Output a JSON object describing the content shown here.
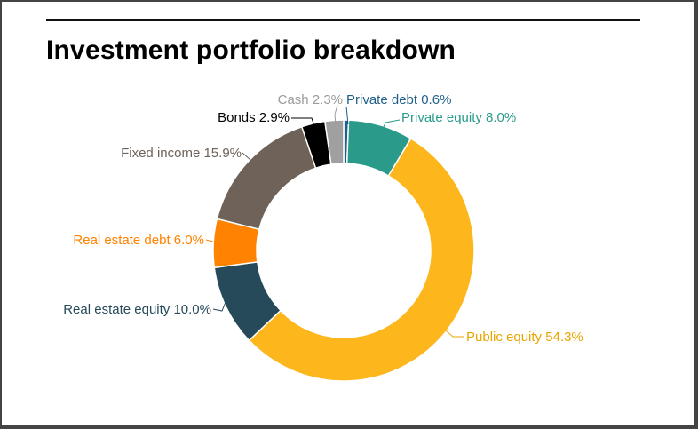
{
  "header": {
    "title": "Investment portfolio breakdown"
  },
  "chart_data": {
    "type": "pie",
    "variant": "donut",
    "title": "Investment portfolio breakdown",
    "legend": "none",
    "slices": [
      {
        "label": "Private debt",
        "value": 0.6,
        "text": "Private debt 0.6%",
        "color": "#1f5f8b"
      },
      {
        "label": "Private equity",
        "value": 8.0,
        "text": "Private equity 8.0%",
        "color": "#2a9a8a"
      },
      {
        "label": "Public equity",
        "value": 54.3,
        "text": "Public equity 54.3%",
        "color": "#fdb61c"
      },
      {
        "label": "Real estate equity",
        "value": 10.0,
        "text": "Real estate equity 10.0%",
        "color": "#264a5a"
      },
      {
        "label": "Real estate debt",
        "value": 6.0,
        "text": "Real estate debt 6.0%",
        "color": "#ff8200"
      },
      {
        "label": "Fixed income",
        "value": 15.9,
        "text": "Fixed income 15.9%",
        "color": "#6e6259"
      },
      {
        "label": "Bonds",
        "value": 2.9,
        "text": "Bonds 2.9%",
        "color": "#000000"
      },
      {
        "label": "Cash",
        "value": 2.3,
        "text": "Cash 2.3%",
        "color": "#a0a0a0"
      }
    ],
    "label_colors": [
      "#1f5f8b",
      "#2a9a8a",
      "#e8a500",
      "#264a5a",
      "#ff8200",
      "#6e6259",
      "#000000",
      "#9a9a9a"
    ]
  }
}
